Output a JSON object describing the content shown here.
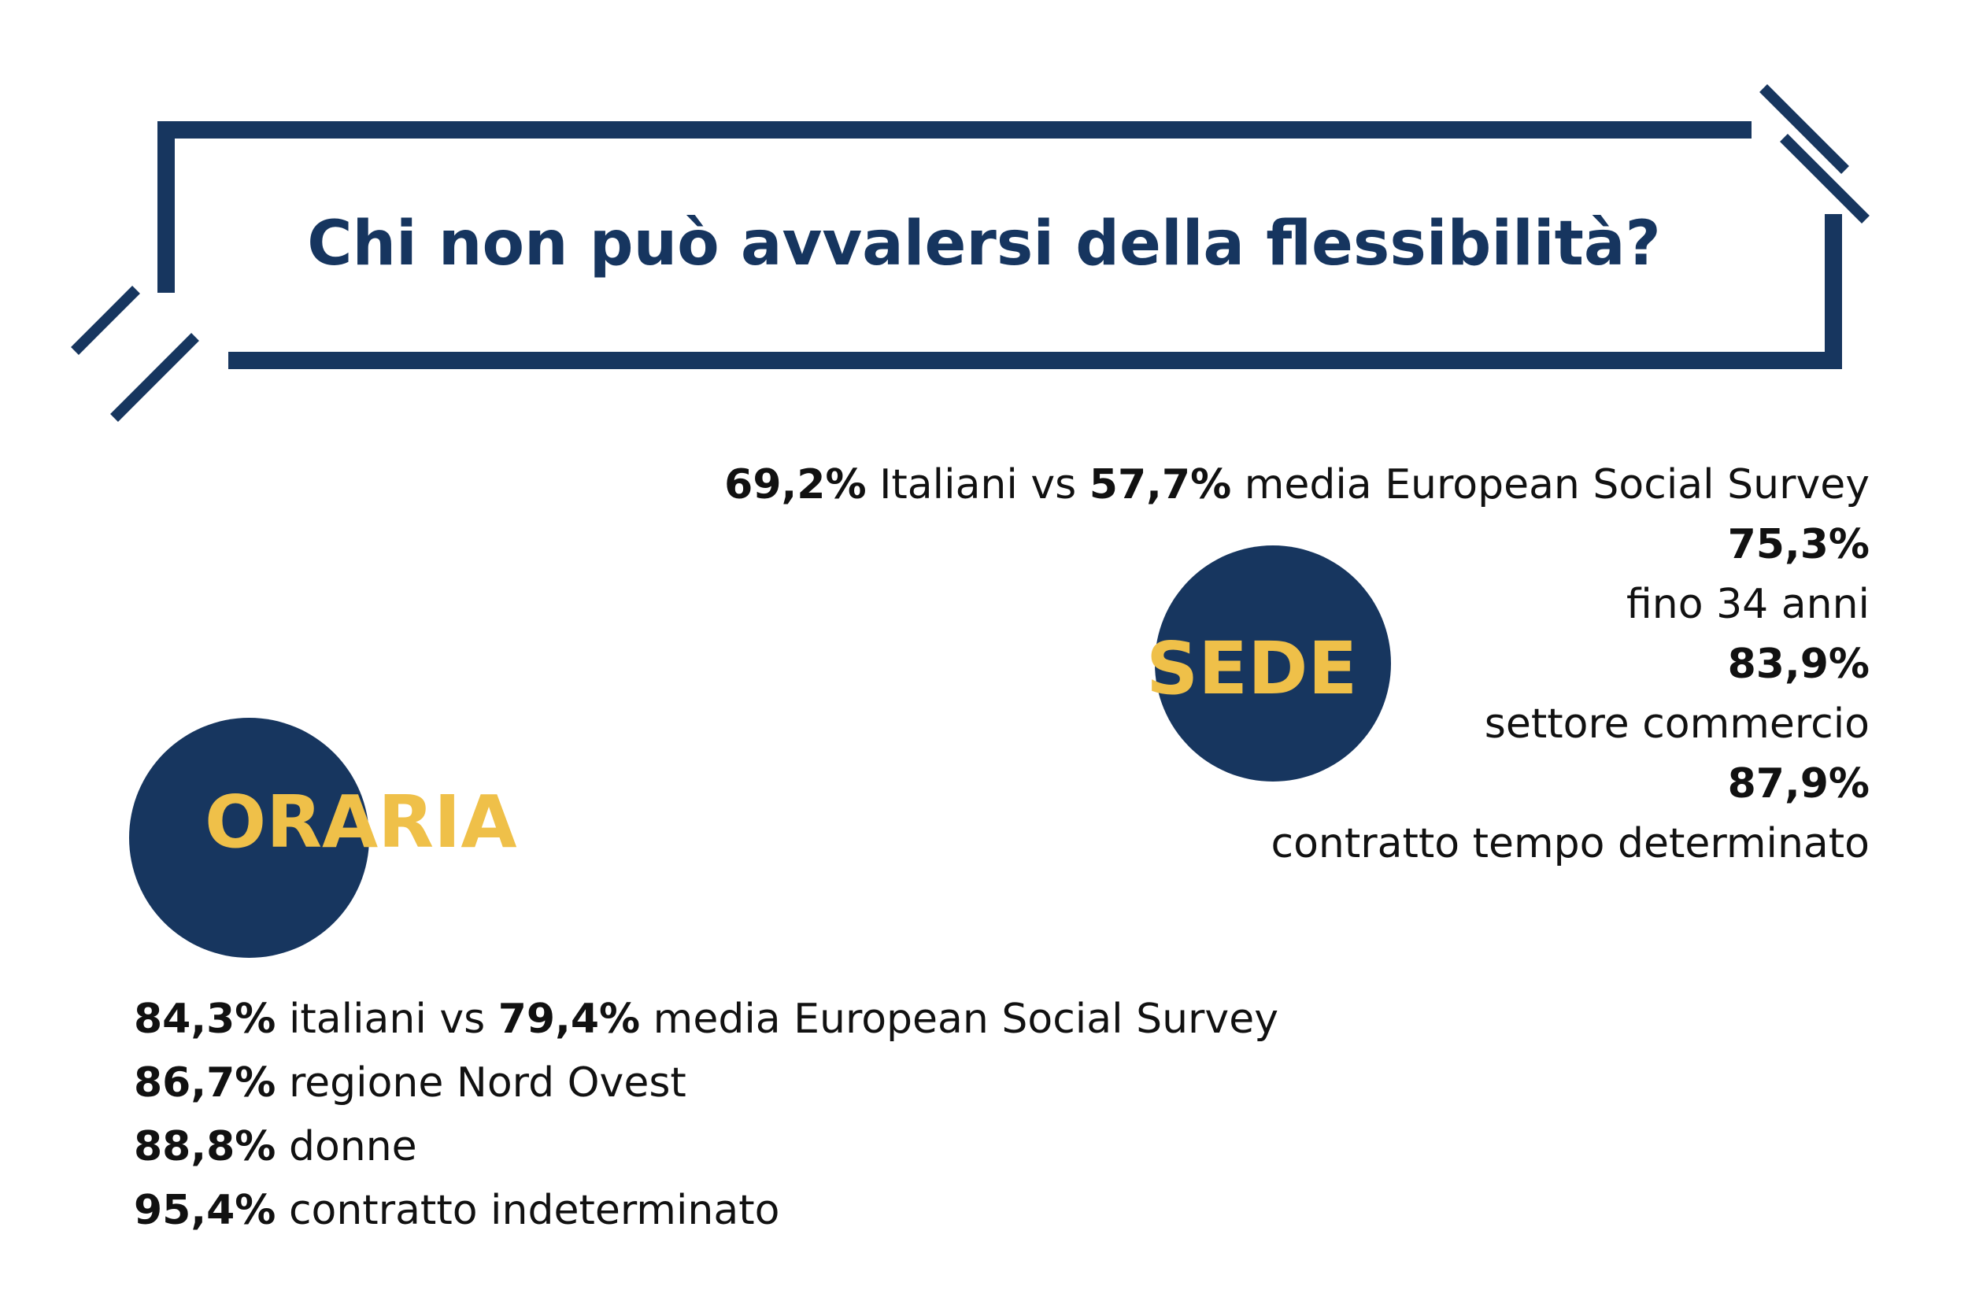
{
  "title": "Chi non può avvalersi della flessibilità?",
  "colors": {
    "navy": "#17365f",
    "gold": "#efc049",
    "text": "#111111",
    "background": "#ffffff"
  },
  "sede": {
    "label": "SEDE",
    "comparison": {
      "value_a": "69,2%",
      "text_a": "Italiani vs",
      "value_b": "57,7%",
      "text_b": "media European Social Survey"
    },
    "stats": [
      {
        "value": "75,3%",
        "label": "fino 34 anni"
      },
      {
        "value": "83,9%",
        "label": "settore commercio"
      },
      {
        "value": "87,9%",
        "label": "contratto tempo determinato"
      }
    ]
  },
  "oraria": {
    "label": "ORARIA",
    "comparison": {
      "value_a": "84,3%",
      "text_a": "italiani vs",
      "value_b": "79,4%",
      "text_b": "media European Social Survey"
    },
    "stats": [
      {
        "value": "86,7%",
        "label": "regione Nord Ovest"
      },
      {
        "value": "88,8%",
        "label": "donne"
      },
      {
        "value": "95,4%",
        "label": "contratto indeterminato"
      }
    ]
  }
}
